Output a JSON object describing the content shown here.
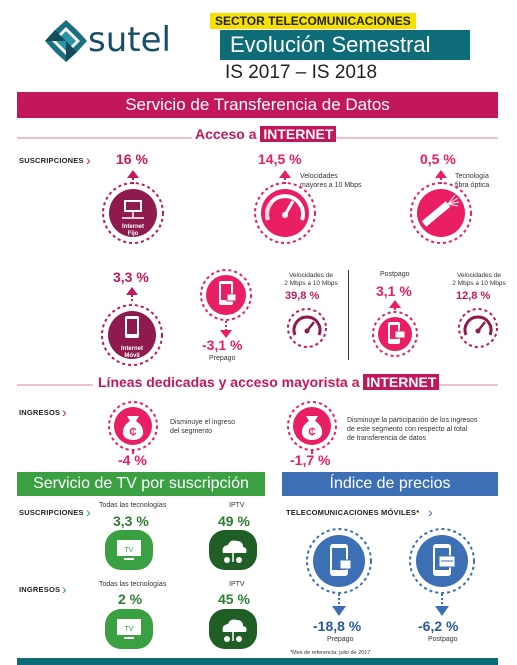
{
  "header": {
    "logo_text": "sutel",
    "sector": "SECTOR TELECOMUNICACIONES",
    "title": "Evolución Semestral",
    "period": "IS 2017 – IS 2018"
  },
  "bands": {
    "datos": "Servicio de Transferencia de Datos",
    "tv": "Servicio de TV por suscripción",
    "precios": "Índice de precios"
  },
  "internet_access": {
    "title_prefix": "Acceso a ",
    "title_highlight": "INTERNET",
    "tag_suscripciones": "SUSCRIPCIONES",
    "fijo": {
      "value": "16 %",
      "label_line1": "Internet",
      "label_line2": "Fijo"
    },
    "velocidades": {
      "value": "14,5 %",
      "note_line1": "Velocidades",
      "note_line2": "mayores a 10 Mbps"
    },
    "fibra": {
      "value": "0,5 %",
      "note_line1": "Tecnología",
      "note_line2": "fibra óptica"
    },
    "movil": {
      "value": "3,3 %",
      "label_line1": "Internet",
      "label_line2": "Móvil"
    },
    "prepago": {
      "value": "-3,1 %",
      "label": "Prepago"
    },
    "prepago_speed": {
      "note_line1": "Velocidades de",
      "note_line2": "2 Mbps a 10 Mbps",
      "value": "39,8 %"
    },
    "postpago": {
      "label": "Postpago",
      "value": "3,1 %"
    },
    "postpago_speed": {
      "note_line1": "Velocidades de",
      "note_line2": "2 Mbps a 10 Mbps",
      "value": "12,8 %"
    }
  },
  "dedicated": {
    "title_prefix": "Líneas dedicadas y acceso mayorista a ",
    "title_highlight": "INTERNET",
    "tag_ingresos": "INGRESOS",
    "left": {
      "note_line1": "Disminuye el ingreso",
      "note_line2": "del segmento",
      "value": "-4 %"
    },
    "right": {
      "note_line1": "Disminuye la participación de los ingresos",
      "note_line2": "de este segmento con respecto al total",
      "note_line3": "de transferencia de datos",
      "value": "-1,7 %"
    }
  },
  "tv": {
    "tag_suscripciones": "SUSCRIPCIONES",
    "tag_ingresos": "INGRESOS",
    "sub_all": {
      "label": "Todas las tecnologías",
      "value": "3,3 %",
      "icon_text": "TV"
    },
    "sub_iptv": {
      "label": "IPTV",
      "value": "49 %"
    },
    "ing_all": {
      "label": "Todas las tecnologías",
      "value": "2 %",
      "icon_text": "TV"
    },
    "ing_iptv": {
      "label": "IPTV",
      "value": "45 %"
    }
  },
  "prices": {
    "tag": "TELECOMUNICACIONES MÓVILES*",
    "prepago": {
      "value": "-18,8 %",
      "label": "Prepago"
    },
    "postpago": {
      "value": "-6,2 %",
      "label": "Postpago"
    },
    "footnote": "*Mes de referencia: julio de 2017"
  },
  "colors": {
    "magenta": "#c2185b",
    "pink": "#e91e63",
    "green": "#3aa042",
    "blue": "#3c6fb4",
    "teal": "#0e6b78",
    "yellow": "#f6e000"
  }
}
